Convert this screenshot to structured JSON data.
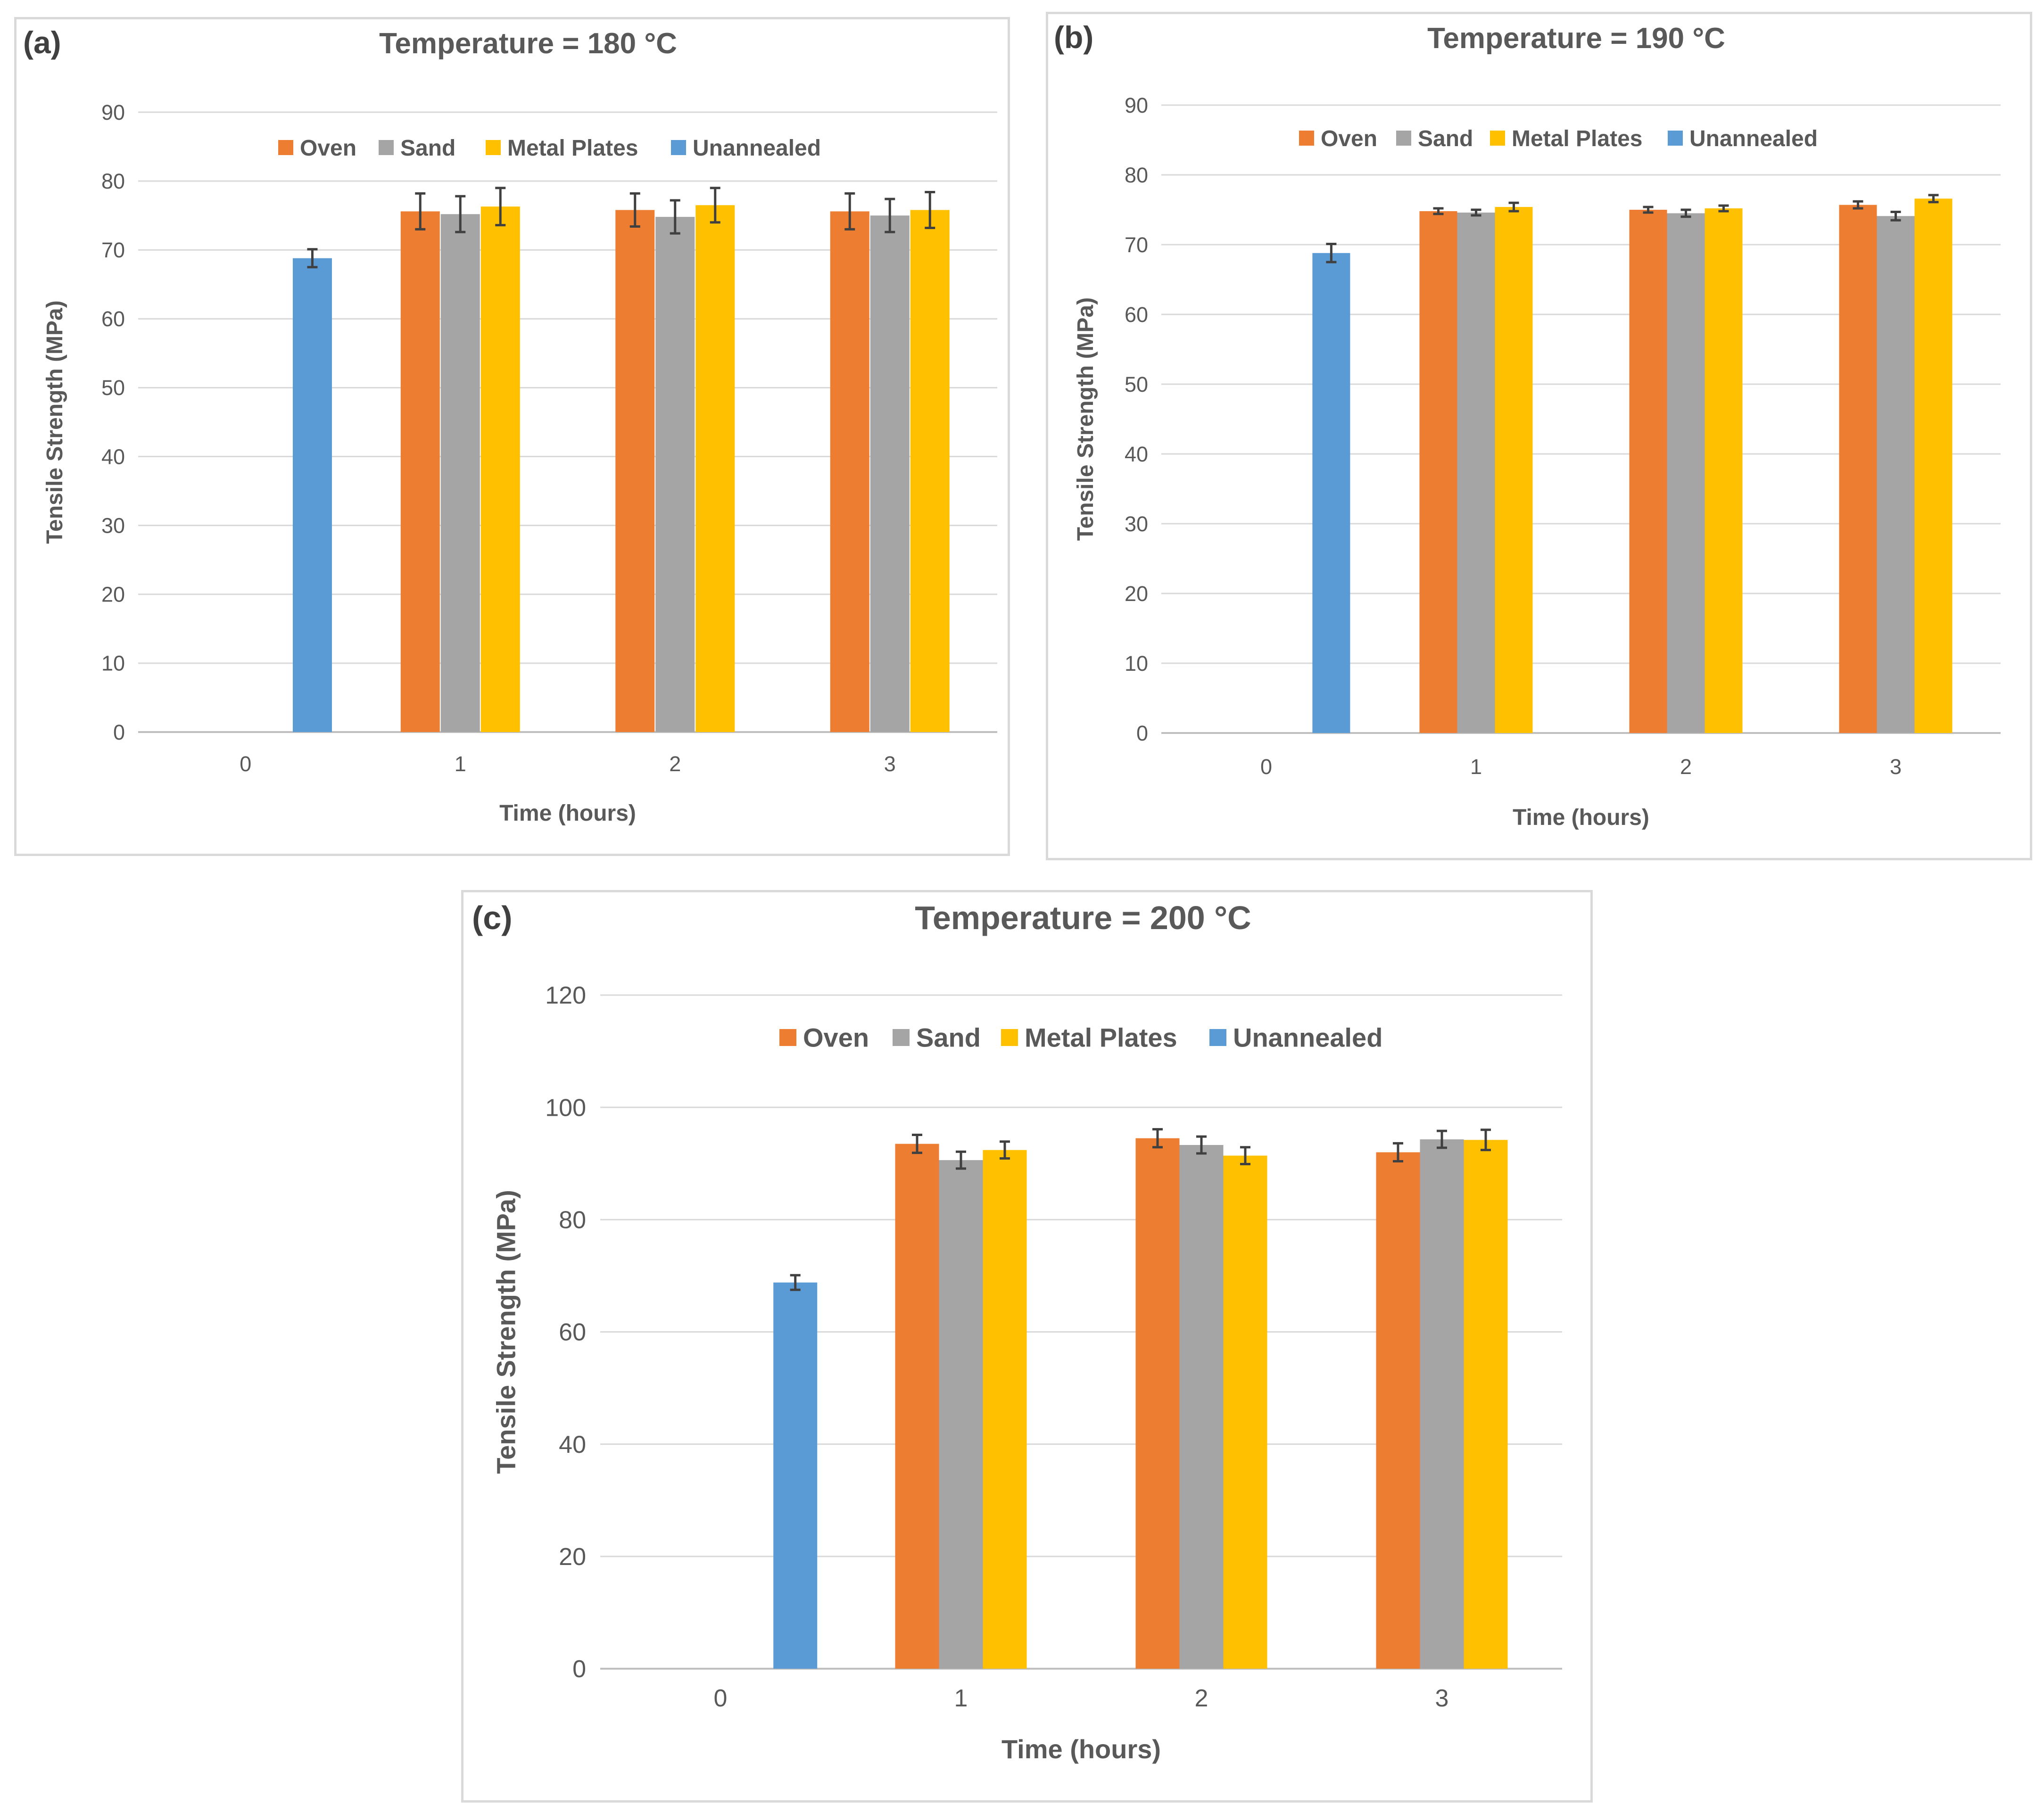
{
  "colors": {
    "Oven": "#ed7d31",
    "Sand": "#a5a5a5",
    "Metal Plates": "#ffc000",
    "Unannealed": "#5b9bd5"
  },
  "chart_data": [
    {
      "panel_label": "(a)",
      "type": "bar",
      "title": "Temperature = 180 °C",
      "xlabel": "Time (hours)",
      "ylabel": "Tensile Strength (MPa)",
      "ylim": [
        0,
        90
      ],
      "yticks": [
        0,
        10,
        20,
        30,
        40,
        50,
        60,
        70,
        80,
        90
      ],
      "grid": true,
      "legend_position": "top",
      "categories": [
        "0",
        "1",
        "2",
        "3"
      ],
      "series": [
        {
          "name": "Oven",
          "values": [
            null,
            75.6,
            75.8,
            75.6
          ],
          "errors": [
            null,
            2.6,
            2.4,
            2.6
          ]
        },
        {
          "name": "Sand",
          "values": [
            null,
            75.2,
            74.8,
            75.0
          ],
          "errors": [
            null,
            2.6,
            2.4,
            2.4
          ]
        },
        {
          "name": "Metal Plates",
          "values": [
            null,
            76.3,
            76.5,
            75.8
          ],
          "errors": [
            null,
            2.7,
            2.5,
            2.6
          ]
        },
        {
          "name": "Unannealed",
          "values": [
            68.8,
            null,
            null,
            null
          ],
          "errors": [
            1.3,
            null,
            null,
            null
          ]
        }
      ]
    },
    {
      "panel_label": "(b)",
      "type": "bar",
      "title": "Temperature = 190 °C",
      "xlabel": "Time (hours)",
      "ylabel": "Tensile Strength (MPa)",
      "ylim": [
        0,
        90
      ],
      "yticks": [
        0,
        10,
        20,
        30,
        40,
        50,
        60,
        70,
        80,
        90
      ],
      "grid": true,
      "legend_position": "top",
      "categories": [
        "0",
        "1",
        "2",
        "3"
      ],
      "series": [
        {
          "name": "Oven",
          "values": [
            null,
            74.8,
            75.0,
            75.7
          ],
          "errors": [
            null,
            0.4,
            0.4,
            0.5
          ]
        },
        {
          "name": "Sand",
          "values": [
            null,
            74.6,
            74.5,
            74.1
          ],
          "errors": [
            null,
            0.4,
            0.5,
            0.6
          ]
        },
        {
          "name": "Metal Plates",
          "values": [
            null,
            75.4,
            75.2,
            76.6
          ],
          "errors": [
            null,
            0.6,
            0.4,
            0.5
          ]
        },
        {
          "name": "Unannealed",
          "values": [
            68.8,
            null,
            null,
            null
          ],
          "errors": [
            1.3,
            null,
            null,
            null
          ]
        }
      ]
    },
    {
      "panel_label": "(c)",
      "type": "bar",
      "title": "Temperature = 200 °C",
      "xlabel": "Time (hours)",
      "ylabel": "Tensile Strength (MPa)",
      "ylim": [
        0,
        120
      ],
      "yticks": [
        0,
        20,
        40,
        60,
        80,
        100,
        120
      ],
      "grid": true,
      "legend_position": "top",
      "categories": [
        "0",
        "1",
        "2",
        "3"
      ],
      "series": [
        {
          "name": "Oven",
          "values": [
            null,
            93.5,
            94.5,
            92.0
          ],
          "errors": [
            null,
            1.6,
            1.6,
            1.6
          ]
        },
        {
          "name": "Sand",
          "values": [
            null,
            90.6,
            93.3,
            94.3
          ],
          "errors": [
            null,
            1.5,
            1.5,
            1.5
          ]
        },
        {
          "name": "Metal Plates",
          "values": [
            null,
            92.4,
            91.4,
            94.2
          ],
          "errors": [
            null,
            1.5,
            1.5,
            1.8
          ]
        },
        {
          "name": "Unannealed",
          "values": [
            68.8,
            null,
            null,
            null
          ],
          "errors": [
            1.3,
            null,
            null,
            null
          ]
        }
      ]
    }
  ]
}
